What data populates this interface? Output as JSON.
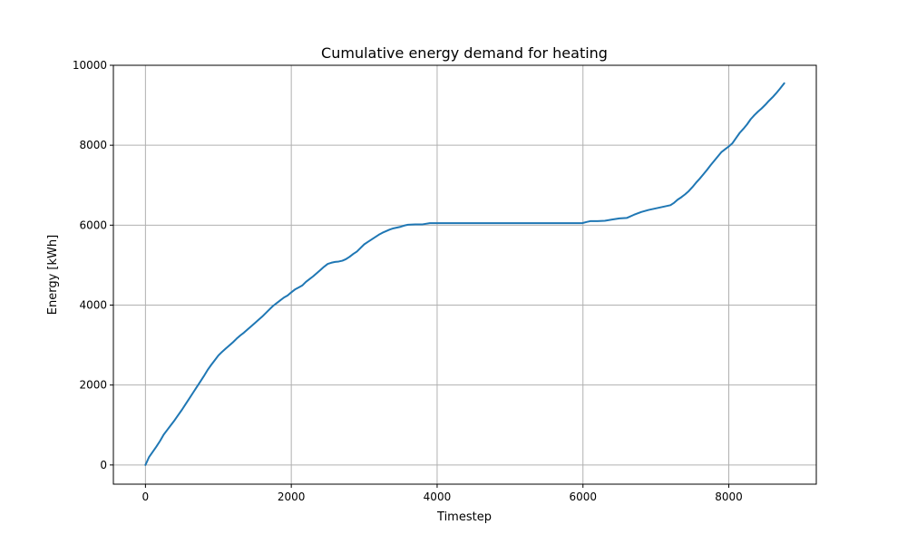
{
  "chart_data": {
    "type": "line",
    "title": "Cumulative energy demand for heating",
    "xlabel": "Timestep",
    "ylabel": "Energy [kWh]",
    "xlim": [
      -440,
      9200
    ],
    "ylim": [
      -480,
      10000
    ],
    "xticks": [
      0,
      2000,
      4000,
      6000,
      8000
    ],
    "yticks": [
      0,
      2000,
      4000,
      6000,
      8000,
      10000
    ],
    "grid": true,
    "colors": {
      "line": "#1f77b4",
      "grid": "#b0b0b0",
      "axis": "#000000"
    },
    "series": [
      {
        "x": [
          0,
          50,
          100,
          150,
          200,
          250,
          300,
          350,
          400,
          450,
          500,
          550,
          600,
          650,
          700,
          750,
          800,
          850,
          900,
          950,
          1000,
          1050,
          1100,
          1150,
          1200,
          1250,
          1300,
          1350,
          1400,
          1450,
          1500,
          1550,
          1600,
          1650,
          1700,
          1750,
          1800,
          1850,
          1900,
          1950,
          2000,
          2050,
          2100,
          2150,
          2200,
          2250,
          2300,
          2350,
          2400,
          2450,
          2500,
          2550,
          2600,
          2650,
          2700,
          2750,
          2800,
          2850,
          2900,
          2950,
          3000,
          3050,
          3100,
          3150,
          3200,
          3250,
          3300,
          3350,
          3400,
          3450,
          3500,
          3550,
          3600,
          3700,
          3800,
          3900,
          4000,
          5000,
          5500,
          5990,
          6050,
          6100,
          6200,
          6300,
          6400,
          6500,
          6600,
          6700,
          6800,
          6900,
          7000,
          7100,
          7200,
          7250,
          7300,
          7350,
          7400,
          7450,
          7500,
          7550,
          7600,
          7650,
          7700,
          7750,
          7800,
          7850,
          7900,
          7950,
          8000,
          8050,
          8100,
          8150,
          8200,
          8250,
          8300,
          8350,
          8400,
          8450,
          8500,
          8550,
          8600,
          8650,
          8700,
          8760
        ],
        "y": [
          0,
          200,
          330,
          460,
          600,
          760,
          880,
          1000,
          1120,
          1250,
          1380,
          1520,
          1660,
          1800,
          1940,
          2080,
          2220,
          2370,
          2500,
          2620,
          2740,
          2830,
          2910,
          2990,
          3070,
          3160,
          3240,
          3310,
          3390,
          3470,
          3550,
          3630,
          3710,
          3800,
          3890,
          3980,
          4050,
          4120,
          4190,
          4240,
          4320,
          4390,
          4440,
          4490,
          4580,
          4650,
          4720,
          4800,
          4880,
          4960,
          5030,
          5060,
          5080,
          5090,
          5110,
          5150,
          5210,
          5280,
          5340,
          5430,
          5520,
          5580,
          5640,
          5700,
          5760,
          5810,
          5850,
          5890,
          5920,
          5940,
          5960,
          5990,
          6010,
          6020,
          6020,
          6050,
          6050,
          6050,
          6050,
          6050,
          6080,
          6100,
          6100,
          6110,
          6140,
          6170,
          6180,
          6260,
          6330,
          6380,
          6420,
          6460,
          6500,
          6560,
          6640,
          6700,
          6770,
          6850,
          6950,
          7060,
          7160,
          7270,
          7380,
          7500,
          7610,
          7720,
          7830,
          7900,
          7970,
          8050,
          8180,
          8310,
          8410,
          8520,
          8650,
          8750,
          8840,
          8920,
          9010,
          9110,
          9200,
          9300,
          9410,
          9550
        ]
      }
    ]
  }
}
